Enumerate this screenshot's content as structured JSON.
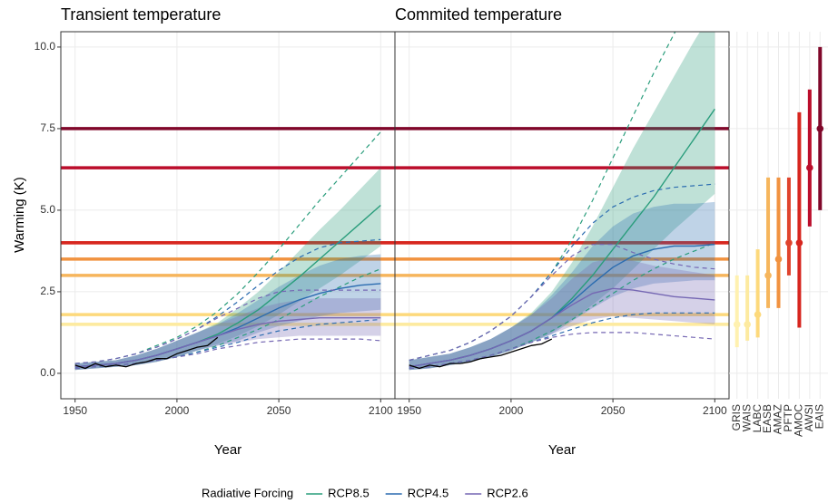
{
  "chart_data": [
    {
      "type": "line",
      "title": "Transient temperature",
      "ylabel": "Warming (K)",
      "xlabel": "Year",
      "legend_title": "Radiative Forcing",
      "xlim": [
        1943,
        2107
      ],
      "xticks": [
        1950,
        2000,
        2050,
        2100
      ],
      "ylim": [
        -0.78,
        10.47
      ],
      "yticks": [
        {
          "value": 0,
          "label": "0.0"
        },
        {
          "value": 2.5,
          "label": "2.5"
        },
        {
          "value": 5,
          "label": "5.0"
        },
        {
          "value": 7.5,
          "label": "7.5"
        },
        {
          "value": 10,
          "label": "10.0"
        }
      ],
      "grid": true,
      "x": [
        1950,
        1960,
        1970,
        1980,
        1990,
        2000,
        2010,
        2020,
        2030,
        2040,
        2050,
        2060,
        2070,
        2080,
        2090,
        2100
      ],
      "series": [
        {
          "name": "RCP8.5",
          "color": "#2a9d7c",
          "values": [
            0.2,
            0.25,
            0.3,
            0.4,
            0.55,
            0.75,
            0.95,
            1.2,
            1.55,
            1.95,
            2.45,
            2.95,
            3.5,
            4.05,
            4.6,
            5.15
          ],
          "lower": [
            0.1,
            0.15,
            0.2,
            0.25,
            0.35,
            0.5,
            0.7,
            0.9,
            1.15,
            1.45,
            1.8,
            2.2,
            2.6,
            3.0,
            3.45,
            3.9
          ],
          "upper": [
            0.3,
            0.35,
            0.4,
            0.55,
            0.75,
            1.0,
            1.25,
            1.55,
            2.0,
            2.5,
            3.1,
            3.75,
            4.4,
            5.0,
            5.65,
            6.3
          ],
          "min": [
            0.15,
            0.2,
            0.25,
            0.3,
            0.4,
            0.5,
            0.65,
            0.85,
            1.1,
            1.35,
            1.65,
            2.0,
            2.35,
            2.65,
            2.95,
            3.2
          ],
          "max": [
            0.3,
            0.35,
            0.45,
            0.6,
            0.85,
            1.1,
            1.45,
            1.9,
            2.45,
            3.1,
            3.8,
            4.55,
            5.3,
            6.0,
            6.7,
            7.4
          ]
        },
        {
          "name": "RCP4.5",
          "color": "#2b6cb0",
          "values": [
            0.2,
            0.25,
            0.3,
            0.4,
            0.55,
            0.75,
            0.95,
            1.15,
            1.4,
            1.7,
            2.0,
            2.25,
            2.45,
            2.6,
            2.7,
            2.75
          ],
          "lower": [
            0.1,
            0.15,
            0.2,
            0.25,
            0.35,
            0.5,
            0.7,
            0.85,
            1.0,
            1.25,
            1.45,
            1.6,
            1.75,
            1.85,
            1.9,
            1.95
          ],
          "upper": [
            0.3,
            0.35,
            0.4,
            0.55,
            0.75,
            1.0,
            1.25,
            1.5,
            1.85,
            2.25,
            2.65,
            3.0,
            3.3,
            3.5,
            3.6,
            3.65
          ],
          "min": [
            0.15,
            0.2,
            0.25,
            0.3,
            0.4,
            0.5,
            0.65,
            0.8,
            0.95,
            1.15,
            1.3,
            1.4,
            1.5,
            1.55,
            1.6,
            1.65
          ],
          "max": [
            0.3,
            0.35,
            0.45,
            0.6,
            0.8,
            1.05,
            1.35,
            1.75,
            2.2,
            2.7,
            3.15,
            3.55,
            3.85,
            4.0,
            4.05,
            4.1
          ]
        },
        {
          "name": "RCP2.6",
          "color": "#7567b3",
          "values": [
            0.2,
            0.25,
            0.3,
            0.4,
            0.55,
            0.75,
            0.95,
            1.15,
            1.35,
            1.5,
            1.6,
            1.65,
            1.7,
            1.7,
            1.7,
            1.7
          ],
          "lower": [
            0.1,
            0.15,
            0.2,
            0.25,
            0.35,
            0.5,
            0.7,
            0.85,
            0.95,
            1.05,
            1.1,
            1.15,
            1.15,
            1.15,
            1.15,
            1.15
          ],
          "upper": [
            0.3,
            0.35,
            0.4,
            0.55,
            0.75,
            1.0,
            1.25,
            1.5,
            1.75,
            2.0,
            2.15,
            2.25,
            2.3,
            2.3,
            2.3,
            2.3
          ],
          "min": [
            0.15,
            0.2,
            0.25,
            0.3,
            0.4,
            0.5,
            0.6,
            0.75,
            0.85,
            0.95,
            1.0,
            1.05,
            1.05,
            1.05,
            1.05,
            1.0
          ],
          "max": [
            0.3,
            0.35,
            0.45,
            0.6,
            0.8,
            1.05,
            1.35,
            1.7,
            2.0,
            2.3,
            2.5,
            2.55,
            2.55,
            2.55,
            2.55,
            2.55
          ]
        }
      ],
      "observed": {
        "color": "#000000",
        "x": [
          1950,
          1955,
          1960,
          1965,
          1970,
          1975,
          1980,
          1985,
          1990,
          1995,
          2000,
          2005,
          2010,
          2015,
          2020
        ],
        "values": [
          0.25,
          0.15,
          0.3,
          0.2,
          0.25,
          0.2,
          0.3,
          0.35,
          0.45,
          0.45,
          0.6,
          0.7,
          0.8,
          0.85,
          1.1
        ]
      }
    },
    {
      "type": "line",
      "title": "Commited temperature",
      "xlabel": "Year",
      "xlim": [
        1943,
        2107
      ],
      "xticks": [
        1950,
        2000,
        2050,
        2100
      ],
      "ylim": [
        -0.78,
        10.47
      ],
      "yticks": [
        0,
        2.5,
        5,
        7.5,
        10
      ],
      "grid": true,
      "x": [
        1950,
        1960,
        1970,
        1980,
        1990,
        2000,
        2010,
        2020,
        2030,
        2040,
        2050,
        2060,
        2070,
        2080,
        2090,
        2100
      ],
      "series": [
        {
          "color": "#2a9d7c",
          "values": [
            0.2,
            0.3,
            0.4,
            0.55,
            0.75,
            1.0,
            1.3,
            1.7,
            2.3,
            3.0,
            3.8,
            4.6,
            5.4,
            6.3,
            7.2,
            8.1
          ],
          "lower": [
            0.1,
            0.15,
            0.25,
            0.35,
            0.5,
            0.7,
            0.95,
            1.25,
            1.65,
            2.1,
            2.6,
            3.2,
            3.8,
            4.4,
            4.95,
            5.5
          ],
          "upper": [
            0.4,
            0.5,
            0.6,
            0.8,
            1.05,
            1.4,
            1.85,
            2.5,
            3.4,
            4.5,
            5.7,
            6.9,
            8.0,
            9.1,
            10.2,
            11.2
          ],
          "min": [
            0.15,
            0.2,
            0.3,
            0.4,
            0.55,
            0.75,
            1.0,
            1.3,
            1.65,
            2.05,
            2.45,
            2.85,
            3.2,
            3.5,
            3.75,
            4.0
          ],
          "max": [
            0.4,
            0.55,
            0.7,
            0.95,
            1.3,
            1.75,
            2.35,
            3.1,
            4.1,
            5.3,
            6.6,
            7.9,
            9.2,
            10.4,
            11.6,
            12.8
          ]
        },
        {
          "color": "#2b6cb0",
          "values": [
            0.2,
            0.3,
            0.4,
            0.55,
            0.75,
            1.0,
            1.3,
            1.7,
            2.2,
            2.75,
            3.25,
            3.6,
            3.8,
            3.9,
            3.9,
            3.95
          ],
          "lower": [
            0.1,
            0.15,
            0.25,
            0.35,
            0.5,
            0.7,
            0.95,
            1.2,
            1.6,
            2.0,
            2.35,
            2.6,
            2.75,
            2.8,
            2.85,
            2.85
          ],
          "upper": [
            0.4,
            0.5,
            0.6,
            0.8,
            1.05,
            1.4,
            1.8,
            2.4,
            3.1,
            3.9,
            4.5,
            4.9,
            5.1,
            5.2,
            5.2,
            5.25
          ],
          "min": [
            0.15,
            0.2,
            0.3,
            0.4,
            0.55,
            0.75,
            0.95,
            1.15,
            1.35,
            1.55,
            1.7,
            1.8,
            1.85,
            1.85,
            1.85,
            1.85
          ],
          "max": [
            0.4,
            0.55,
            0.7,
            0.95,
            1.3,
            1.75,
            2.35,
            3.1,
            3.9,
            4.6,
            5.1,
            5.4,
            5.6,
            5.7,
            5.75,
            5.8
          ]
        },
        {
          "color": "#7567b3",
          "values": [
            0.2,
            0.3,
            0.4,
            0.55,
            0.75,
            1.0,
            1.3,
            1.7,
            2.1,
            2.45,
            2.6,
            2.55,
            2.45,
            2.35,
            2.3,
            2.25
          ],
          "lower": [
            0.1,
            0.15,
            0.25,
            0.35,
            0.5,
            0.7,
            0.95,
            1.2,
            1.45,
            1.65,
            1.75,
            1.7,
            1.65,
            1.6,
            1.55,
            1.5
          ],
          "upper": [
            0.4,
            0.5,
            0.6,
            0.8,
            1.05,
            1.4,
            1.8,
            2.3,
            2.9,
            3.4,
            3.55,
            3.45,
            3.3,
            3.2,
            3.1,
            3.0
          ],
          "min": [
            0.15,
            0.2,
            0.3,
            0.4,
            0.55,
            0.75,
            0.95,
            1.1,
            1.2,
            1.25,
            1.25,
            1.25,
            1.2,
            1.15,
            1.1,
            1.05
          ],
          "max": [
            0.4,
            0.55,
            0.7,
            0.95,
            1.3,
            1.75,
            2.35,
            3.0,
            3.6,
            3.95,
            3.95,
            3.7,
            3.5,
            3.35,
            3.25,
            3.2
          ]
        }
      ],
      "observed": {
        "color": "#000000",
        "x": [
          1950,
          1955,
          1960,
          1965,
          1970,
          1975,
          1980,
          1985,
          1990,
          1995,
          2000,
          2005,
          2010,
          2015,
          2020
        ],
        "values": [
          0.25,
          0.15,
          0.25,
          0.2,
          0.3,
          0.3,
          0.35,
          0.45,
          0.5,
          0.55,
          0.65,
          0.75,
          0.85,
          0.9,
          1.05
        ]
      }
    },
    {
      "type": "pointrange",
      "ylim": [
        -0.78,
        10.47
      ],
      "yticks": [
        0,
        2.5,
        5,
        7.5,
        10
      ],
      "grid": true,
      "categories": [
        "GRIS",
        "WAIS",
        "LABC",
        "EASB",
        "AMAZ",
        "PFTP",
        "AMOC",
        "AWSI",
        "EAIS"
      ],
      "values": [
        1.5,
        1.5,
        1.8,
        3.0,
        3.5,
        4.0,
        4.0,
        6.3,
        7.5
      ],
      "lower": [
        0.8,
        1.0,
        1.1,
        2.0,
        2.0,
        3.0,
        1.4,
        4.5,
        5.0
      ],
      "upper": [
        3.0,
        3.0,
        3.8,
        6.0,
        6.0,
        6.0,
        8.0,
        8.7,
        10.0
      ],
      "colors": [
        "#fff1b0",
        "#fdeaa0",
        "#fdd97c",
        "#f6b55c",
        "#f1923f",
        "#e0432c",
        "#d7261f",
        "#bb0d2b",
        "#80072a"
      ]
    }
  ]
}
